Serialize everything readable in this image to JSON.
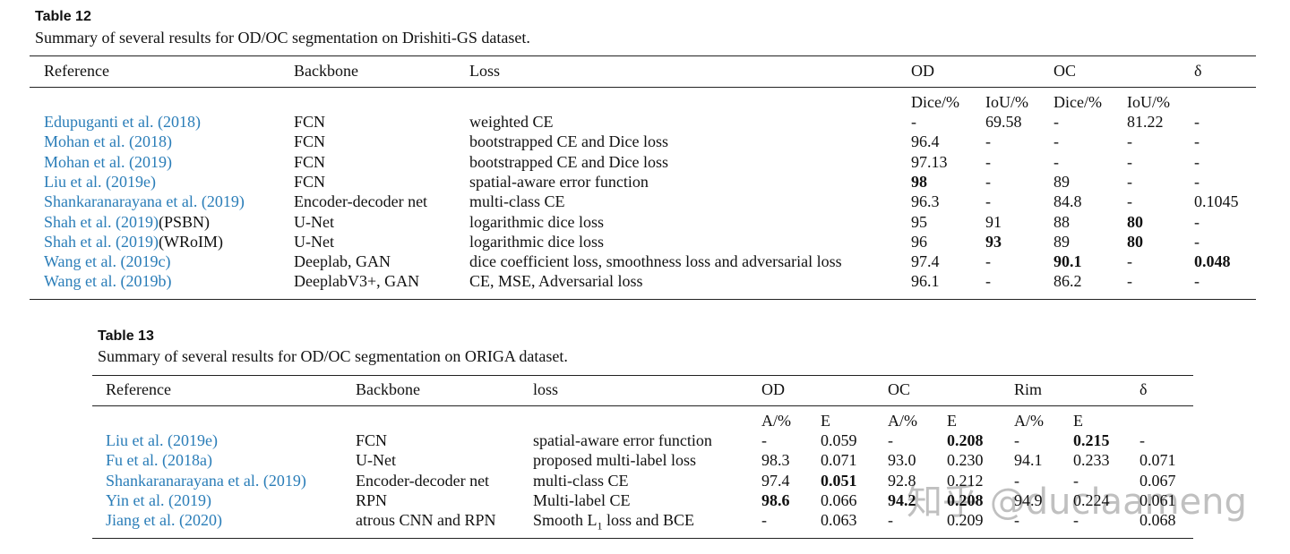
{
  "table12": {
    "label": "Table 12",
    "caption": "Summary of several results for OD/OC segmentation on Drishiti-GS dataset.",
    "header": [
      "Reference",
      "Backbone",
      "Loss",
      "OD",
      null,
      "OC",
      null,
      "δ"
    ],
    "subheader": [
      null,
      null,
      null,
      "Dice/%",
      "IoU/%",
      "Dice/%",
      "IoU/%",
      null
    ],
    "rows": [
      [
        "Edupuganti et al. (2018)",
        "FCN",
        "weighted CE",
        "-",
        "69.58",
        "-",
        "81.22",
        "-"
      ],
      [
        "Mohan et al. (2018)",
        "FCN",
        "bootstrapped CE and Dice loss",
        "96.4",
        "-",
        "-",
        "-",
        "-"
      ],
      [
        "Mohan et al. (2019)",
        "FCN",
        "bootstrapped CE and Dice loss",
        "97.13",
        "-",
        "-",
        "-",
        "-"
      ],
      [
        "Liu et al. (2019e)",
        "FCN",
        "spatial-aware error function",
        "98",
        "-",
        "89",
        "-",
        "-"
      ],
      [
        "Shankaranarayana et al. (2019)",
        "Encoder-decoder net",
        "multi-class CE",
        "96.3",
        "-",
        "84.8",
        "-",
        "0.1045"
      ],
      [
        [
          "Shah et al. (2019)",
          "(PSBN)"
        ],
        "U-Net",
        "logarithmic dice loss",
        "95",
        "91",
        "88",
        "80",
        "-"
      ],
      [
        [
          "Shah et al. (2019)",
          "(WRoIM)"
        ],
        "U-Net",
        "logarithmic dice loss",
        "96",
        "93",
        "89",
        "80",
        "-"
      ],
      [
        "Wang et al. (2019c)",
        "Deeplab, GAN",
        "dice coefficient loss, smoothness loss and adversarial loss",
        "97.4",
        "-",
        "90.1",
        "-",
        "0.048"
      ],
      [
        "Wang et al. (2019b)",
        "DeeplabV3+, GAN",
        "CE, MSE, Adversarial loss",
        "96.1",
        "-",
        "86.2",
        "-",
        "-"
      ]
    ],
    "bold": [
      [
        3,
        3
      ],
      [
        5,
        6
      ],
      [
        6,
        4
      ],
      [
        6,
        6
      ],
      [
        7,
        5
      ],
      [
        7,
        7
      ]
    ]
  },
  "table13": {
    "label": "Table 13",
    "caption": "Summary of several results for OD/OC segmentation on ORIGA dataset.",
    "header": [
      "Reference",
      "Backbone",
      "loss",
      "OD",
      null,
      "OC",
      null,
      "Rim",
      null,
      "δ"
    ],
    "subheader": [
      null,
      null,
      null,
      "A/%",
      "E",
      "A/%",
      "E",
      "A/%",
      "E",
      null
    ],
    "rows": [
      [
        "Liu et al. (2019e)",
        "FCN",
        "spatial-aware error function",
        "-",
        "0.059",
        "-",
        "0.208",
        "-",
        "0.215",
        "-"
      ],
      [
        "Fu et al. (2018a)",
        "U-Net",
        "proposed multi-label loss",
        "98.3",
        "0.071",
        "93.0",
        "0.230",
        "94.1",
        "0.233",
        "0.071"
      ],
      [
        "Shankaranarayana et al. (2019)",
        "Encoder-decoder net",
        "multi-class CE",
        "97.4",
        "0.051",
        "92.8",
        "0.212",
        "-",
        "-",
        "0.067"
      ],
      [
        "Yin et al. (2019)",
        "RPN",
        "Multi-label CE",
        "98.6",
        "0.066",
        "94.2",
        "0.208",
        "94.9",
        "0.224",
        "0.061"
      ],
      [
        "Jiang et al. (2020)",
        "atrous CNN and RPN",
        [
          "Smooth L",
          {
            "sub": "1"
          },
          " loss and BCE"
        ],
        "-",
        "0.063",
        "-",
        "0.209",
        "-",
        "-",
        "0.068"
      ]
    ],
    "bold": [
      [
        0,
        6
      ],
      [
        0,
        8
      ],
      [
        2,
        4
      ],
      [
        3,
        3
      ],
      [
        3,
        5
      ],
      [
        3,
        6
      ]
    ]
  },
  "watermark": "知乎 @duclaameng"
}
